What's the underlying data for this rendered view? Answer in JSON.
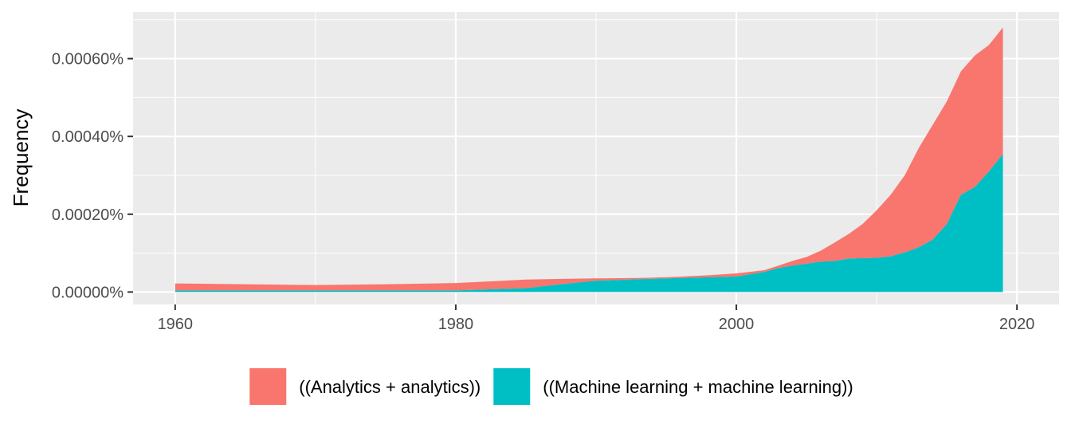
{
  "chart_data": {
    "type": "area",
    "stacked": true,
    "title": "",
    "xlabel": "",
    "ylabel": "Frequency",
    "xlim": [
      1957,
      2023
    ],
    "ylim": [
      -3.2e-05,
      0.00072
    ],
    "x_ticks": [
      1960,
      1980,
      2000,
      2020
    ],
    "x_tick_labels": [
      "1960",
      "1980",
      "2000",
      "2020"
    ],
    "y_ticks": [
      0,
      0.0002,
      0.0004,
      0.0006
    ],
    "y_tick_labels": [
      "0.00000%",
      "0.00020%",
      "0.00040%",
      "0.00060%"
    ],
    "grid": true,
    "legend_position": "bottom",
    "x": [
      1960,
      1965,
      1970,
      1975,
      1980,
      1985,
      1988,
      1990,
      1993,
      1995,
      1998,
      2000,
      2002,
      2003,
      2004,
      2005,
      2006,
      2007,
      2008,
      2009,
      2010,
      2011,
      2012,
      2013,
      2014,
      2015,
      2016,
      2017,
      2018,
      2019
    ],
    "series": [
      {
        "name": "((Machine learning + machine learning))",
        "color": "#00BFC4",
        "values": [
          4e-06,
          4e-06,
          4e-06,
          4e-06,
          4e-06,
          1e-05,
          2.2e-05,
          2.9e-05,
          3.3e-05,
          3.5e-05,
          3.8e-05,
          4e-05,
          5.2e-05,
          6.2e-05,
          6.8e-05,
          7.3e-05,
          7.8e-05,
          8e-05,
          8.6e-05,
          8.7e-05,
          8.8e-05,
          9.2e-05,
          0.000102,
          0.000115,
          0.000135,
          0.000175,
          0.00025,
          0.00027,
          0.00031,
          0.000355
        ]
      },
      {
        "name": "((Analytics + analytics))",
        "color": "#F8766D",
        "values": [
          1.8e-05,
          1.6e-05,
          1.4e-05,
          1.6e-05,
          1.9e-05,
          2.2e-05,
          1.2e-05,
          6e-06,
          3e-06,
          3e-06,
          5e-06,
          8e-06,
          4e-06,
          6e-06,
          1.2e-05,
          1.7e-05,
          2.8e-05,
          4.7e-05,
          6.3e-05,
          8.8e-05,
          0.000122,
          0.000158,
          0.000198,
          0.000255,
          0.000295,
          0.000315,
          0.000317,
          0.000338,
          0.000325,
          0.000325
        ]
      }
    ]
  }
}
